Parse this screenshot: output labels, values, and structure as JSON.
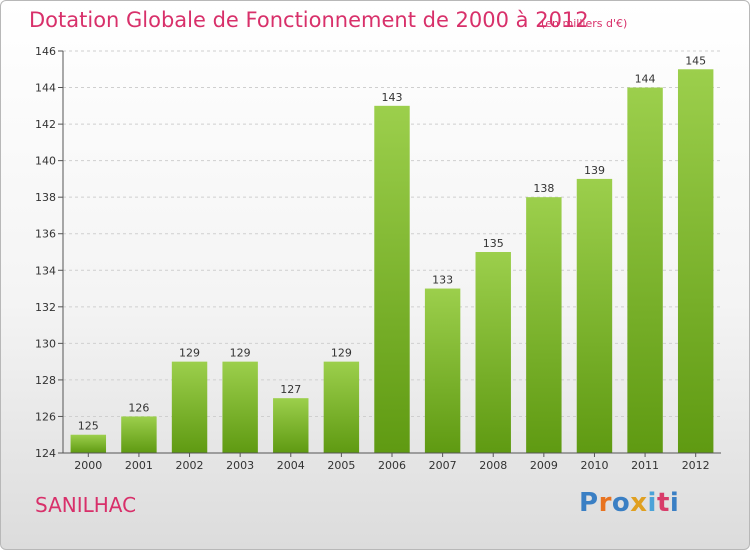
{
  "title": "Dotation Globale de Fonctionnement de 2000 à 2012",
  "subtitle": "(en milliers d'€)",
  "city": "SANILHAC",
  "logo": {
    "text": "Proxiti",
    "colors": [
      "#3a7fc4",
      "#e8731f",
      "#3a7fc4",
      "#e0a020",
      "#4aa3d8",
      "#d83c6a",
      "#3a7fc4"
    ]
  },
  "colors": {
    "bar_top": "#9ccf4c",
    "bar_bottom": "#5f9a12",
    "accent": "#d8306a"
  },
  "chart_data": {
    "type": "bar",
    "title": "Dotation Globale de Fonctionnement de 2000 à 2012",
    "subtitle": "(en milliers d'€)",
    "xlabel": "",
    "ylabel": "",
    "ylim": [
      124,
      146
    ],
    "yticks": [
      124,
      126,
      128,
      130,
      132,
      134,
      136,
      138,
      140,
      142,
      144,
      146
    ],
    "grid": true,
    "legend": "none",
    "categories": [
      "2000",
      "2001",
      "2002",
      "2003",
      "2004",
      "2005",
      "2006",
      "2007",
      "2008",
      "2009",
      "2010",
      "2011",
      "2012"
    ],
    "values": [
      125,
      126,
      129,
      129,
      127,
      129,
      143,
      133,
      135,
      138,
      139,
      144,
      145
    ]
  }
}
